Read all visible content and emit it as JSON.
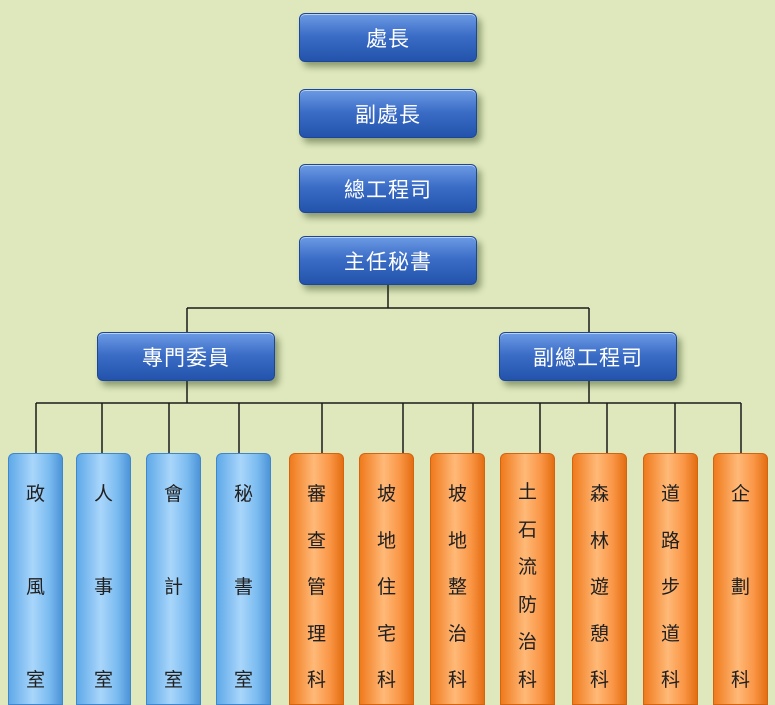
{
  "top_chain": [
    "處長",
    "副處長",
    "總工程司",
    "主任秘書"
  ],
  "branches": [
    "專門委員",
    "副總工程司"
  ],
  "units": [
    {
      "label": "政風室",
      "color": "#8fc7f5"
    },
    {
      "label": "人事室",
      "color": "#8fc7f5"
    },
    {
      "label": "會計室",
      "color": "#8fc7f5"
    },
    {
      "label": "秘書室",
      "color": "#8fc7f5"
    },
    {
      "label": "審查管理科",
      "color": "#f99a4a"
    },
    {
      "label": "坡地住宅科",
      "color": "#f99a4a"
    },
    {
      "label": "坡地整治科",
      "color": "#f99a4a"
    },
    {
      "label": "土石流防治科",
      "color": "#f99a4a"
    },
    {
      "label": "森林遊憩科",
      "color": "#f99a4a"
    },
    {
      "label": "道路步道科",
      "color": "#f99a4a"
    },
    {
      "label": "企劃科",
      "color": "#f99a4a"
    }
  ],
  "colors": {
    "background": "#dfe8bd",
    "node_blue": "#3a6cc6",
    "unit_blue": "#8fc7f5",
    "unit_orange": "#f99a4a"
  }
}
